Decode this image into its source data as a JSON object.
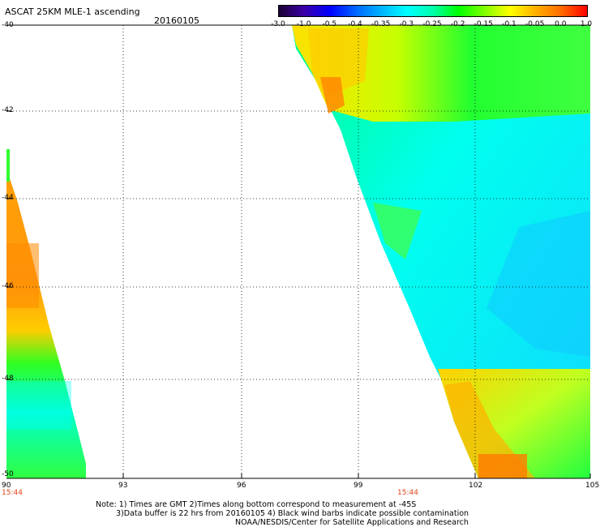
{
  "header": {
    "title": "ASCAT 25KM MLE-1 ascending",
    "date": "20160105"
  },
  "colorbar": {
    "labels": [
      "-3.0",
      "-1.0",
      "-0.5",
      "-0.4",
      "-0.35",
      "-0.3",
      "-0.25",
      "-0.2",
      "-0.15",
      "-0.1",
      "-0.05",
      "0.0",
      "1.0"
    ],
    "colors": [
      "#1a0033",
      "#3b00a8",
      "#0000ff",
      "#0066ff",
      "#00b4ff",
      "#00ffff",
      "#00ffaa",
      "#00ff00",
      "#7fff00",
      "#ffff00",
      "#ffb000",
      "#ff6a00",
      "#ff0000"
    ]
  },
  "axes": {
    "lat_labels": [
      "-40",
      "-42",
      "-44",
      "-46",
      "-48",
      "-50"
    ],
    "lon_labels": [
      "90",
      "93",
      "96",
      "99",
      "102",
      "105"
    ],
    "time_labels": [
      "15:44",
      "15:44"
    ]
  },
  "notes": {
    "line1": "Note: 1) Times are GMT 2)Times along bottom correspond to measurement at -45S",
    "line2": "3)Data buffer is 22 hrs from 20160105 4) Black wind barbs indicate possible contamination",
    "line3": "NOAA/NESDIS/Center for Satellite Applications and Research"
  },
  "map": {
    "swaths": [
      {
        "name": "west-swath",
        "dominant_value": "0.0 to -0.05 (north), -0.2 to -0.3 (south)"
      },
      {
        "name": "east-swath",
        "dominant_value": "-0.1 (north), -0.25 to -0.3 (center), -0.05 (southwest)"
      }
    ]
  }
}
